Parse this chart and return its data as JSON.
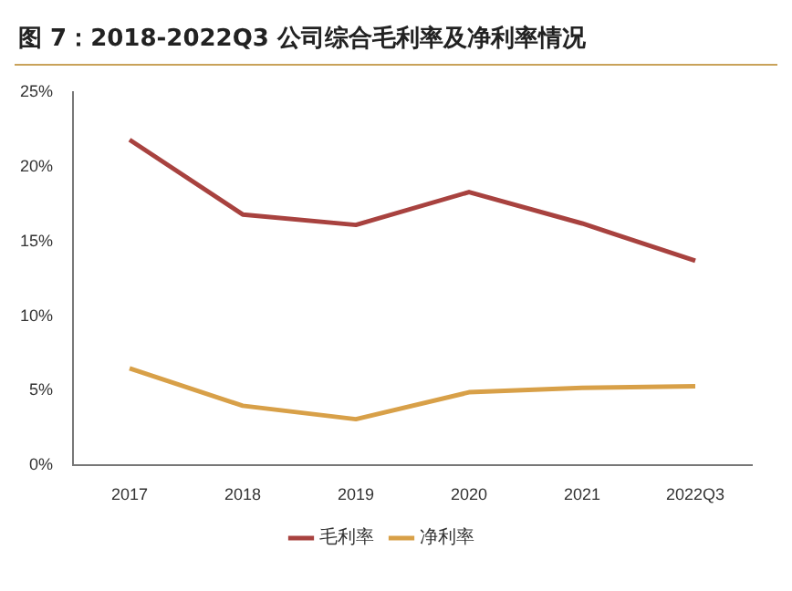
{
  "chart_data": {
    "type": "line",
    "title": "图 7：2018-2022Q3 公司综合毛利率及净利率情况",
    "categories": [
      "2017",
      "2018",
      "2019",
      "2020",
      "2021",
      "2022Q3"
    ],
    "series": [
      {
        "name": "毛利率",
        "color": "#a8423f",
        "values": [
          21.8,
          16.8,
          16.1,
          18.3,
          16.2,
          13.7
        ]
      },
      {
        "name": "净利率",
        "color": "#d8a048",
        "values": [
          6.5,
          4.0,
          3.1,
          4.9,
          5.2,
          5.3
        ]
      }
    ],
    "ylim": [
      0,
      25
    ],
    "yticks": [
      {
        "value": 0,
        "label": "0%"
      },
      {
        "value": 5,
        "label": "5%"
      },
      {
        "value": 10,
        "label": "10%"
      },
      {
        "value": 15,
        "label": "15%"
      },
      {
        "value": 20,
        "label": "20%"
      },
      {
        "value": 25,
        "label": "25%"
      }
    ],
    "grid": false,
    "legend": "bottom",
    "marker": "none",
    "line_style": "solid"
  }
}
